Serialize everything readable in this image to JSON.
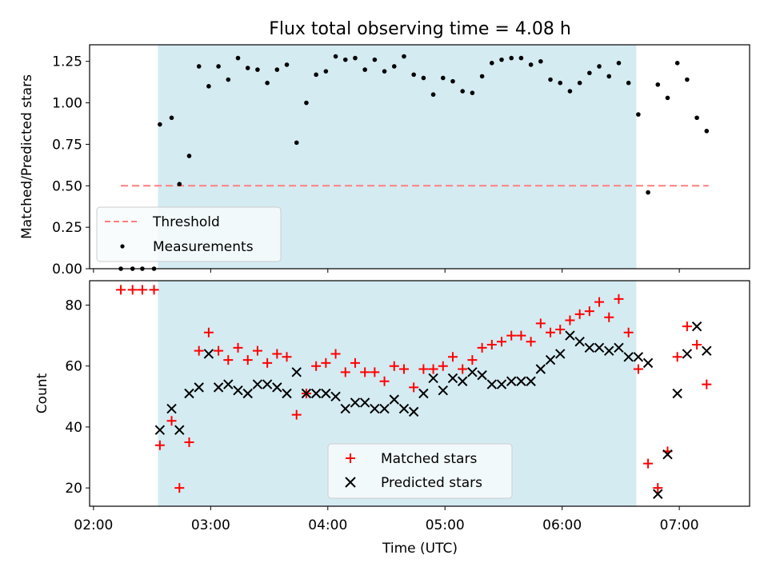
{
  "title": "Flux total observing time = 4.08 h",
  "xlabel": "Time (UTC)",
  "colors": {
    "band": "#d4ebf2",
    "threshold": "#ff7f7f",
    "measurement": "#000000",
    "matched": "#ff0000",
    "predicted": "#000000"
  },
  "chart_data": [
    {
      "type": "scatter",
      "panel": "top",
      "ylabel": "Matched/Predicted stars",
      "ylim": [
        0,
        1.35
      ],
      "yticks": [
        0.0,
        0.25,
        0.5,
        0.75,
        1.0,
        1.25
      ],
      "ytick_labels": [
        "0.00",
        "0.25",
        "0.50",
        "0.75",
        "1.00",
        "1.25"
      ],
      "observing_window": [
        "02:33",
        "06:38"
      ],
      "threshold": {
        "value": 0.5,
        "start": "02:14",
        "end": "07:15"
      },
      "legend": {
        "position": "lower-left",
        "entries": [
          "Threshold",
          "Measurements"
        ]
      },
      "series": [
        {
          "name": "Measurements",
          "x": [
            "02:14",
            "02:20",
            "02:25",
            "02:31",
            "02:34",
            "02:40",
            "02:44",
            "02:49",
            "02:54",
            "02:59",
            "03:04",
            "03:09",
            "03:14",
            "03:19",
            "03:24",
            "03:29",
            "03:34",
            "03:39",
            "03:44",
            "03:49",
            "03:54",
            "03:59",
            "04:04",
            "04:09",
            "04:14",
            "04:19",
            "04:24",
            "04:29",
            "04:34",
            "04:39",
            "04:44",
            "04:49",
            "04:54",
            "04:59",
            "05:04",
            "05:09",
            "05:14",
            "05:19",
            "05:24",
            "05:29",
            "05:34",
            "05:39",
            "05:44",
            "05:49",
            "05:54",
            "05:59",
            "06:04",
            "06:09",
            "06:14",
            "06:19",
            "06:24",
            "06:29",
            "06:34",
            "06:39",
            "06:44",
            "06:49",
            "06:54",
            "06:59",
            "07:04",
            "07:09",
            "07:14"
          ],
          "y": [
            0.0,
            0.0,
            0.0,
            0.0,
            0.87,
            0.91,
            0.51,
            0.68,
            1.22,
            1.1,
            1.22,
            1.14,
            1.27,
            1.21,
            1.2,
            1.12,
            1.2,
            1.23,
            0.76,
            1.0,
            1.17,
            1.19,
            1.28,
            1.26,
            1.27,
            1.2,
            1.26,
            1.19,
            1.22,
            1.28,
            1.17,
            1.15,
            1.05,
            1.15,
            1.13,
            1.07,
            1.06,
            1.16,
            1.24,
            1.26,
            1.27,
            1.27,
            1.23,
            1.25,
            1.14,
            1.12,
            1.07,
            1.12,
            1.18,
            1.22,
            1.16,
            1.24,
            1.12,
            0.93,
            0.46,
            1.11,
            1.03,
            1.24,
            1.14,
            0.91,
            0.83
          ]
        }
      ]
    },
    {
      "type": "scatter",
      "panel": "bottom",
      "ylabel": "Count",
      "ylim": [
        14,
        88
      ],
      "yticks": [
        20,
        40,
        60,
        80
      ],
      "xticks": [
        "02:00",
        "03:00",
        "04:00",
        "05:00",
        "06:00",
        "07:00"
      ],
      "observing_window": [
        "02:33",
        "06:38"
      ],
      "legend": {
        "position": "lower-center",
        "entries": [
          "Matched stars",
          "Predicted stars"
        ]
      },
      "series": [
        {
          "name": "Matched stars",
          "x": [
            "02:14",
            "02:20",
            "02:25",
            "02:31",
            "02:34",
            "02:40",
            "02:44",
            "02:49",
            "02:54",
            "02:59",
            "03:04",
            "03:09",
            "03:14",
            "03:19",
            "03:24",
            "03:29",
            "03:34",
            "03:39",
            "03:44",
            "03:49",
            "03:54",
            "03:59",
            "04:04",
            "04:09",
            "04:14",
            "04:19",
            "04:24",
            "04:29",
            "04:34",
            "04:39",
            "04:44",
            "04:49",
            "04:54",
            "04:59",
            "05:04",
            "05:09",
            "05:14",
            "05:19",
            "05:24",
            "05:29",
            "05:34",
            "05:39",
            "05:44",
            "05:49",
            "05:54",
            "05:59",
            "06:04",
            "06:09",
            "06:14",
            "06:19",
            "06:24",
            "06:29",
            "06:34",
            "06:39",
            "06:44",
            "06:49",
            "06:54",
            "06:59",
            "07:04",
            "07:09",
            "07:14"
          ],
          "y": [
            85,
            85,
            85,
            85,
            34,
            42,
            20,
            35,
            65,
            71,
            65,
            62,
            66,
            62,
            65,
            61,
            64,
            63,
            44,
            51,
            60,
            61,
            64,
            58,
            61,
            58,
            58,
            55,
            60,
            59,
            53,
            59,
            59,
            60,
            63,
            59,
            62,
            66,
            67,
            68,
            70,
            70,
            68,
            74,
            71,
            72,
            75,
            77,
            78,
            81,
            76,
            82,
            71,
            59,
            28,
            20,
            32,
            63,
            73,
            67,
            54
          ]
        },
        {
          "name": "Predicted stars",
          "x": [
            "02:34",
            "02:40",
            "02:44",
            "02:49",
            "02:54",
            "02:59",
            "03:04",
            "03:09",
            "03:14",
            "03:19",
            "03:24",
            "03:29",
            "03:34",
            "03:39",
            "03:44",
            "03:49",
            "03:54",
            "03:59",
            "04:04",
            "04:09",
            "04:14",
            "04:19",
            "04:24",
            "04:29",
            "04:34",
            "04:39",
            "04:44",
            "04:49",
            "04:54",
            "04:59",
            "05:04",
            "05:09",
            "05:14",
            "05:19",
            "05:24",
            "05:29",
            "05:34",
            "05:39",
            "05:44",
            "05:49",
            "05:54",
            "05:59",
            "06:04",
            "06:09",
            "06:14",
            "06:19",
            "06:24",
            "06:29",
            "06:34",
            "06:39",
            "06:44",
            "06:49",
            "06:54",
            "06:59",
            "07:04",
            "07:09",
            "07:14"
          ],
          "y": [
            39,
            46,
            39,
            51,
            53,
            64,
            53,
            54,
            52,
            51,
            54,
            54,
            53,
            51,
            58,
            51,
            51,
            51,
            50,
            46,
            48,
            48,
            46,
            46,
            49,
            46,
            45,
            51,
            56,
            52,
            56,
            55,
            58,
            57,
            54,
            54,
            55,
            55,
            55,
            59,
            62,
            64,
            70,
            68,
            66,
            66,
            65,
            66,
            63,
            63,
            61,
            18,
            31,
            51,
            64,
            73,
            65
          ]
        }
      ]
    }
  ]
}
